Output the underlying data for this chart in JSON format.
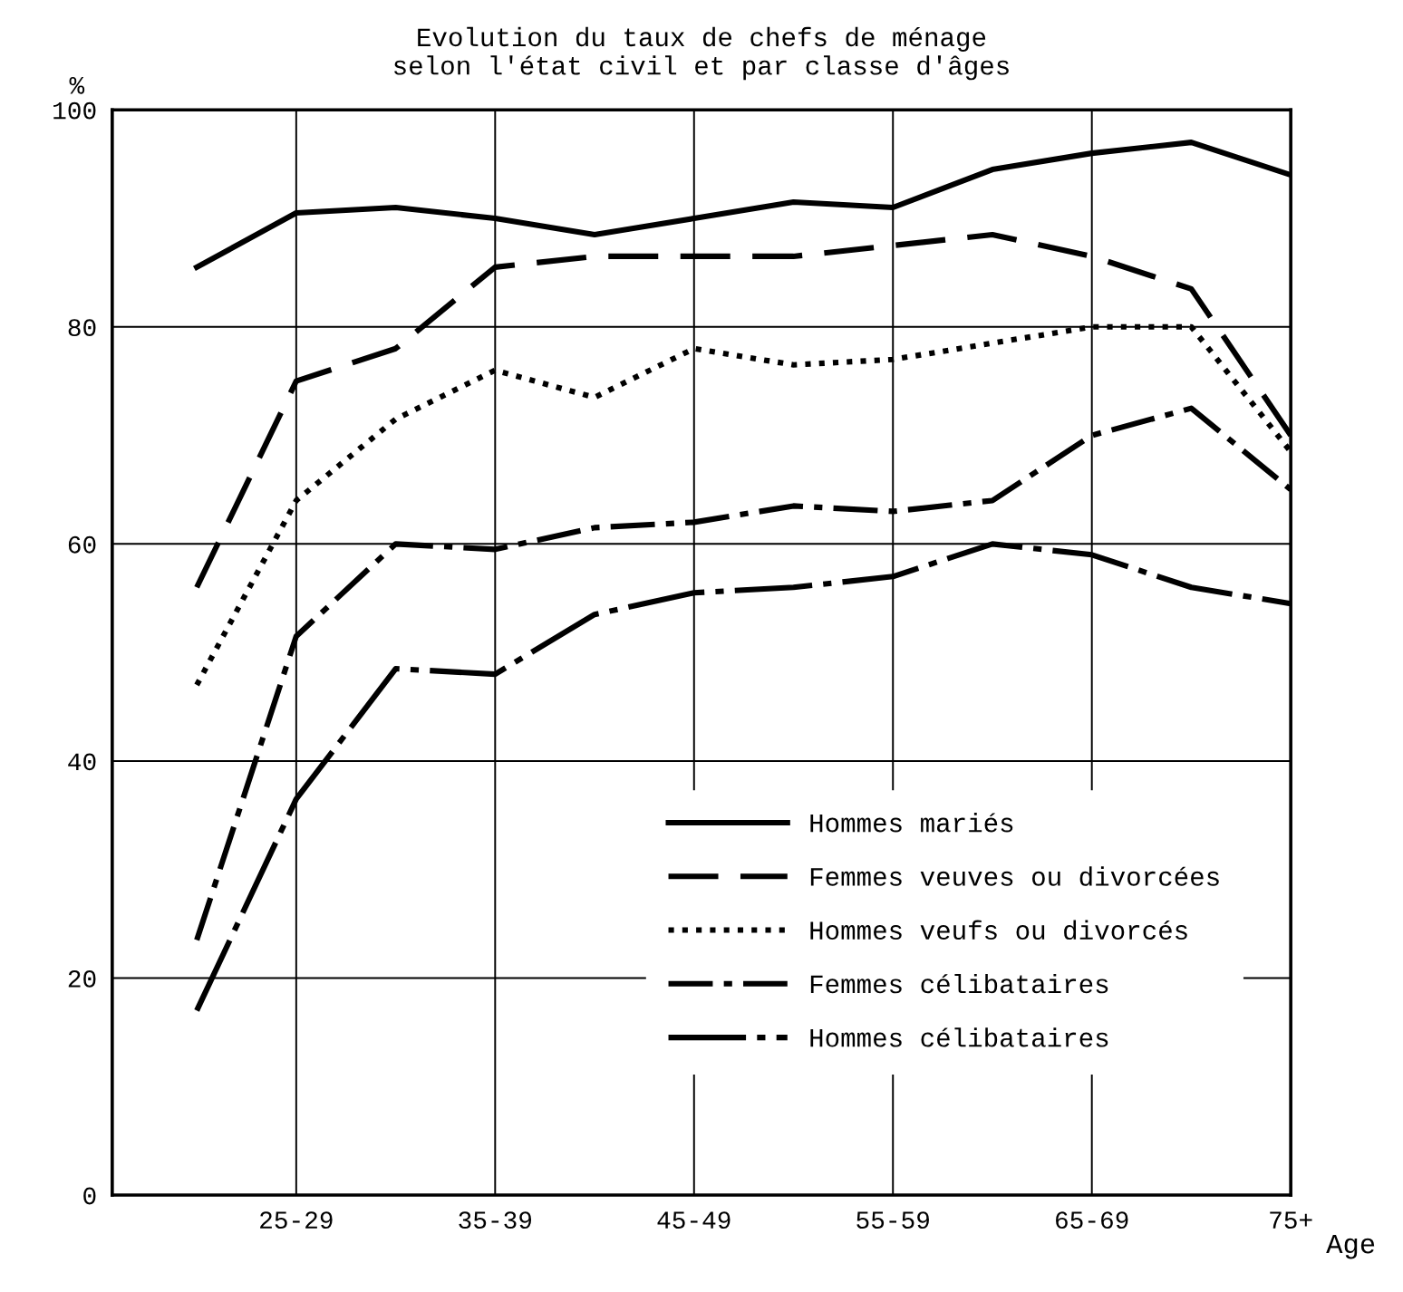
{
  "chart_data": {
    "type": "line",
    "title": "Evolution du taux de chefs de ménage\nselon l'état civil et par classe d'âges",
    "ylabel": "%",
    "xlabel": "Age",
    "categories": [
      null,
      "25-29",
      null,
      "35-39",
      null,
      "45-49",
      null,
      "55-59",
      null,
      "65-69",
      null,
      "75+"
    ],
    "ylim": [
      0,
      100
    ],
    "yticks": [
      0,
      20,
      40,
      60,
      80,
      100
    ],
    "grid": true,
    "legend": "lower right",
    "marker": "none",
    "series": [
      {
        "name": "Hommes mariés",
        "color": "#000000",
        "line_style": "solid",
        "values": [
          85.5,
          90.5,
          91,
          90,
          88.5,
          90,
          91.5,
          91,
          94.5,
          96,
          97,
          94
        ]
      },
      {
        "name": "Femmes veuves ou divorcées",
        "color": "#000000",
        "line_style": "dashed",
        "values": [
          56,
          75,
          78,
          85.5,
          86.5,
          86.5,
          86.5,
          87.5,
          88.5,
          86.5,
          83.5,
          70
        ]
      },
      {
        "name": "Hommes veufs ou divorcés",
        "color": "#000000",
        "line_style": "dotted",
        "values": [
          47,
          64,
          71.5,
          76,
          73.5,
          78,
          76.5,
          77,
          78.5,
          80,
          80,
          68.5
        ]
      },
      {
        "name": "Femmes célibataires",
        "color": "#000000",
        "line_style": "dashdot",
        "values": [
          23.5,
          51.5,
          60,
          59.5,
          61.5,
          62,
          63.5,
          63,
          64,
          70,
          72.5,
          65
        ]
      },
      {
        "name": "Hommes célibataires",
        "color": "#000000",
        "line_style": "longdashdot",
        "values": [
          17,
          36.5,
          48.5,
          48,
          53.5,
          55.5,
          56,
          57,
          60,
          59,
          56,
          54.5
        ]
      }
    ]
  }
}
